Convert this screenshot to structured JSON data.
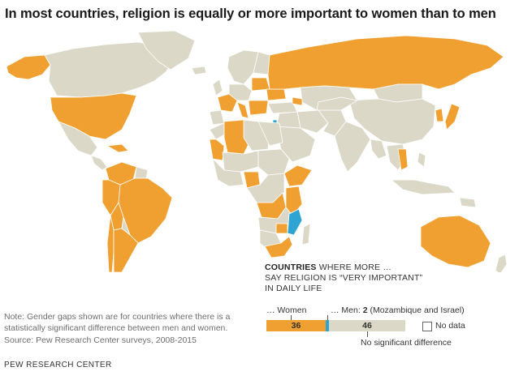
{
  "title": "In most countries, religion is equally or more important to women than to men",
  "legend": {
    "heading_bold": "COUNTRIES",
    "heading_rest_1": " WHERE MORE …",
    "heading_line_2": "SAY RELIGION IS “VERY IMPORTANT”",
    "heading_line_3": "IN DAILY LIFE",
    "women_label": "… Women",
    "men_label": "… Men: ",
    "men_value": "2",
    "men_note": " (Mozambique and Israel)",
    "women_value": "36",
    "no_diff_value": "46",
    "no_data_label": "No data",
    "no_diff_label": "No significant difference"
  },
  "counts": {
    "women": 36,
    "men": 2,
    "no_difference": 46
  },
  "colors": {
    "women": "#f0a030",
    "men": "#2ea4d2",
    "no_difference": "#dcd8c7",
    "no_data": "#ffffff",
    "border": "#9a9a9a"
  },
  "notes": {
    "note": "Note: Gender gaps shown are for countries where there is a statistically significant difference between men and women.",
    "source": "Source: Pew Research Center surveys, 2008-2015"
  },
  "credit": "PEW RESEARCH CENTER"
}
